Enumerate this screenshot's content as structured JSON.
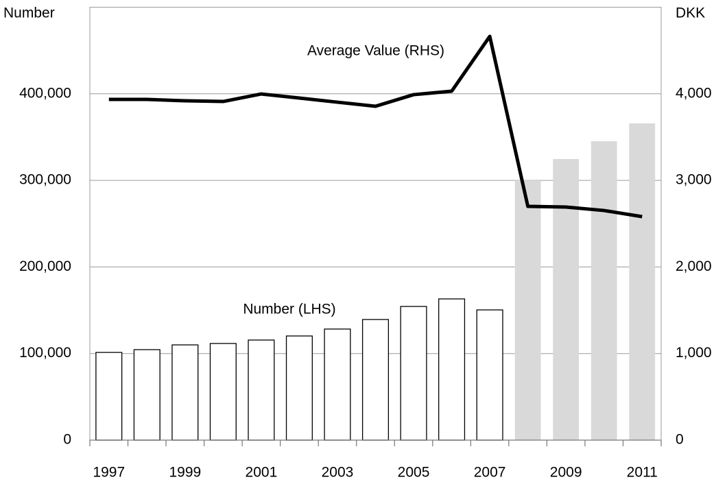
{
  "chart_data": {
    "type": "bar_line",
    "ylabel": "Number",
    "y2label": "DKK",
    "annotations": [
      "Average Value (RHS)",
      "Number (LHS)"
    ],
    "categories": [
      "1997",
      null,
      "1999",
      null,
      "2001",
      null,
      "2003",
      null,
      "2005",
      null,
      "2007",
      null,
      "2009",
      null,
      "2011"
    ],
    "series": [
      {
        "name": "Number (LHS)",
        "type": "bar",
        "axis": "y",
        "colors": [
          "#ffffff",
          "#ffffff",
          "#ffffff",
          "#ffffff",
          "#ffffff",
          "#ffffff",
          "#ffffff",
          "#ffffff",
          "#ffffff",
          "#ffffff",
          "#ffffff",
          "#d9d9d9",
          "#d9d9d9",
          "#d9d9d9",
          "#d9d9d9"
        ],
        "edgecolors": [
          "#000000",
          "#000000",
          "#000000",
          "#000000",
          "#000000",
          "#000000",
          "#000000",
          "#000000",
          "#000000",
          "#000000",
          "#000000",
          "none",
          "none",
          "none",
          "none"
        ],
        "values": [
          101300,
          104500,
          110000,
          111600,
          115600,
          120300,
          128300,
          139300,
          154400,
          163100,
          150400,
          300000,
          324600,
          345200,
          365800
        ]
      },
      {
        "name": "Average Value (RHS)",
        "type": "line",
        "axis": "y2",
        "color": "#000000",
        "values": [
          3935,
          3935,
          3919,
          3911,
          3998,
          3951,
          3903,
          3856,
          3990,
          4030,
          4663,
          2700,
          2692,
          2652,
          2581
        ]
      }
    ],
    "ylim": [
      0,
      500000
    ],
    "yticks": [
      0,
      {
        "value": 100000,
        "label": "100,000"
      },
      {
        "value": 200000,
        "label": "200,000"
      },
      {
        "value": 300000,
        "label": "300,000"
      },
      {
        "value": 400000,
        "label": "400,000"
      }
    ],
    "y2lim": [
      0,
      5000
    ],
    "y2ticks": [
      0,
      {
        "value": 1000,
        "label": "1,000"
      },
      {
        "value": 2000,
        "label": "2,000"
      },
      {
        "value": 3000,
        "label": "3,000"
      },
      {
        "value": 4000,
        "label": "4,000"
      }
    ],
    "grid": true
  }
}
